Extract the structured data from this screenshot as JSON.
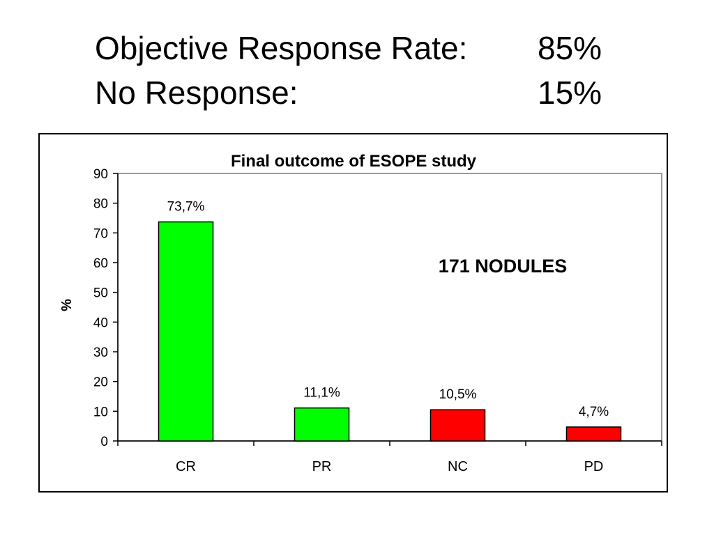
{
  "headline": {
    "line1_label": "Objective Response Rate:",
    "line1_value": "85%",
    "line2_label": "No Response:",
    "line2_value": "15%"
  },
  "chart_data": {
    "type": "bar",
    "title": "Final outcome of ESOPE study",
    "xlabel": "",
    "ylabel": "%",
    "ylim": [
      0,
      90
    ],
    "yticks": [
      0,
      10,
      20,
      30,
      40,
      50,
      60,
      70,
      80,
      90
    ],
    "categories": [
      "CR",
      "PR",
      "NC",
      "PD"
    ],
    "values": [
      73.7,
      11.1,
      10.5,
      4.7
    ],
    "data_labels": [
      "73,7%",
      "11,1%",
      "10,5%",
      "4,7%"
    ],
    "bar_colors": [
      "#00ff00",
      "#00ff00",
      "#ff0000",
      "#ff0000"
    ],
    "annotation": "171 NODULES",
    "grid": false,
    "legend": "none"
  }
}
